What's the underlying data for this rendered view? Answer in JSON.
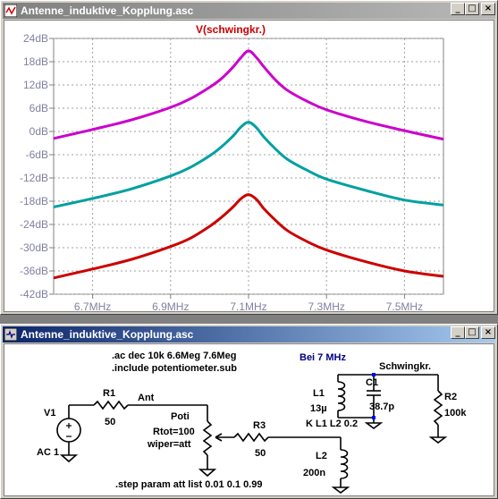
{
  "plot_window": {
    "title": "Antenne_induktive_Kopplung.asc",
    "buttons": {
      "minimize": "_",
      "maximize": "□",
      "close": "×"
    }
  },
  "chart_data": {
    "type": "line",
    "title": "V(schwingkr.)",
    "xlabel": "",
    "ylabel": "",
    "x_unit": "MHz",
    "xlim": [
      6.6,
      7.6
    ],
    "ylim": [
      -42,
      24
    ],
    "x_ticks": [
      "6.7MHz",
      "6.9MHz",
      "7.1MHz",
      "7.3MHz",
      "7.5MHz"
    ],
    "x_tick_values": [
      6.7,
      6.9,
      7.1,
      7.3,
      7.5
    ],
    "y_ticks": [
      "24dB",
      "18dB",
      "12dB",
      "6dB",
      "0dB",
      "-6dB",
      "-12dB",
      "-18dB",
      "-24dB",
      "-30dB",
      "-36dB",
      "-42dB"
    ],
    "y_tick_values": [
      24,
      18,
      12,
      6,
      0,
      -6,
      -12,
      -18,
      -24,
      -30,
      -36,
      -42
    ],
    "grid": true,
    "x": [
      6.6,
      6.7,
      6.8,
      6.9,
      6.95,
      7.0,
      7.03,
      7.06,
      7.08,
      7.1,
      7.12,
      7.14,
      7.17,
      7.2,
      7.25,
      7.3,
      7.4,
      7.5,
      7.6
    ],
    "series": [
      {
        "color": "#cc00cc",
        "values": [
          -1.8,
          0.5,
          3.0,
          6.2,
          8.4,
          11.4,
          13.6,
          16.6,
          19.0,
          20.8,
          19.1,
          16.6,
          13.2,
          10.6,
          7.8,
          5.6,
          2.6,
          0.2,
          -2.0
        ]
      },
      {
        "color": "#00a0a0",
        "values": [
          -19.5,
          -17.3,
          -14.8,
          -11.5,
          -9.3,
          -6.3,
          -4.0,
          -1.2,
          1.1,
          2.4,
          1.0,
          -1.5,
          -4.6,
          -7.2,
          -10.0,
          -12.3,
          -15.2,
          -17.7,
          -19.0
        ]
      },
      {
        "color": "#cc0000",
        "values": [
          -37.8,
          -35.5,
          -33.0,
          -29.7,
          -27.6,
          -24.5,
          -22.2,
          -19.5,
          -17.4,
          -16.3,
          -17.5,
          -20.0,
          -23.0,
          -25.6,
          -28.4,
          -30.6,
          -33.6,
          -36.0,
          -37.4
        ]
      }
    ]
  },
  "schematic_window": {
    "title": "Antenne_induktive_Kopplung.asc",
    "buttons": {
      "minimize": "_",
      "maximize": "□",
      "close": "×"
    }
  },
  "schematic": {
    "directives": [
      ".ac dec 10k 6.6Meg 7.6Meg",
      ".include potentiometer.sub"
    ],
    "step_directive": ".step param att list 0.01 0.1 0.99",
    "k_directive": "K L1 L2 0.2",
    "note": "Bei 7 MHz",
    "net_ant": "Ant",
    "net_schwingkr": "Schwingkr.",
    "v1": {
      "name": "V1",
      "value": "AC 1"
    },
    "r1": {
      "name": "R1",
      "value": "50"
    },
    "poti": {
      "name": "Poti",
      "rtot": "Rtot=100",
      "wiper": "wiper=att"
    },
    "r3": {
      "name": "R3",
      "value": "50"
    },
    "l1": {
      "name": "L1",
      "value": "13µ"
    },
    "c1": {
      "name": "C1",
      "value": "38.7p"
    },
    "r2": {
      "name": "R2",
      "value": "100k"
    },
    "l2": {
      "name": "L2",
      "value": "200n"
    }
  }
}
